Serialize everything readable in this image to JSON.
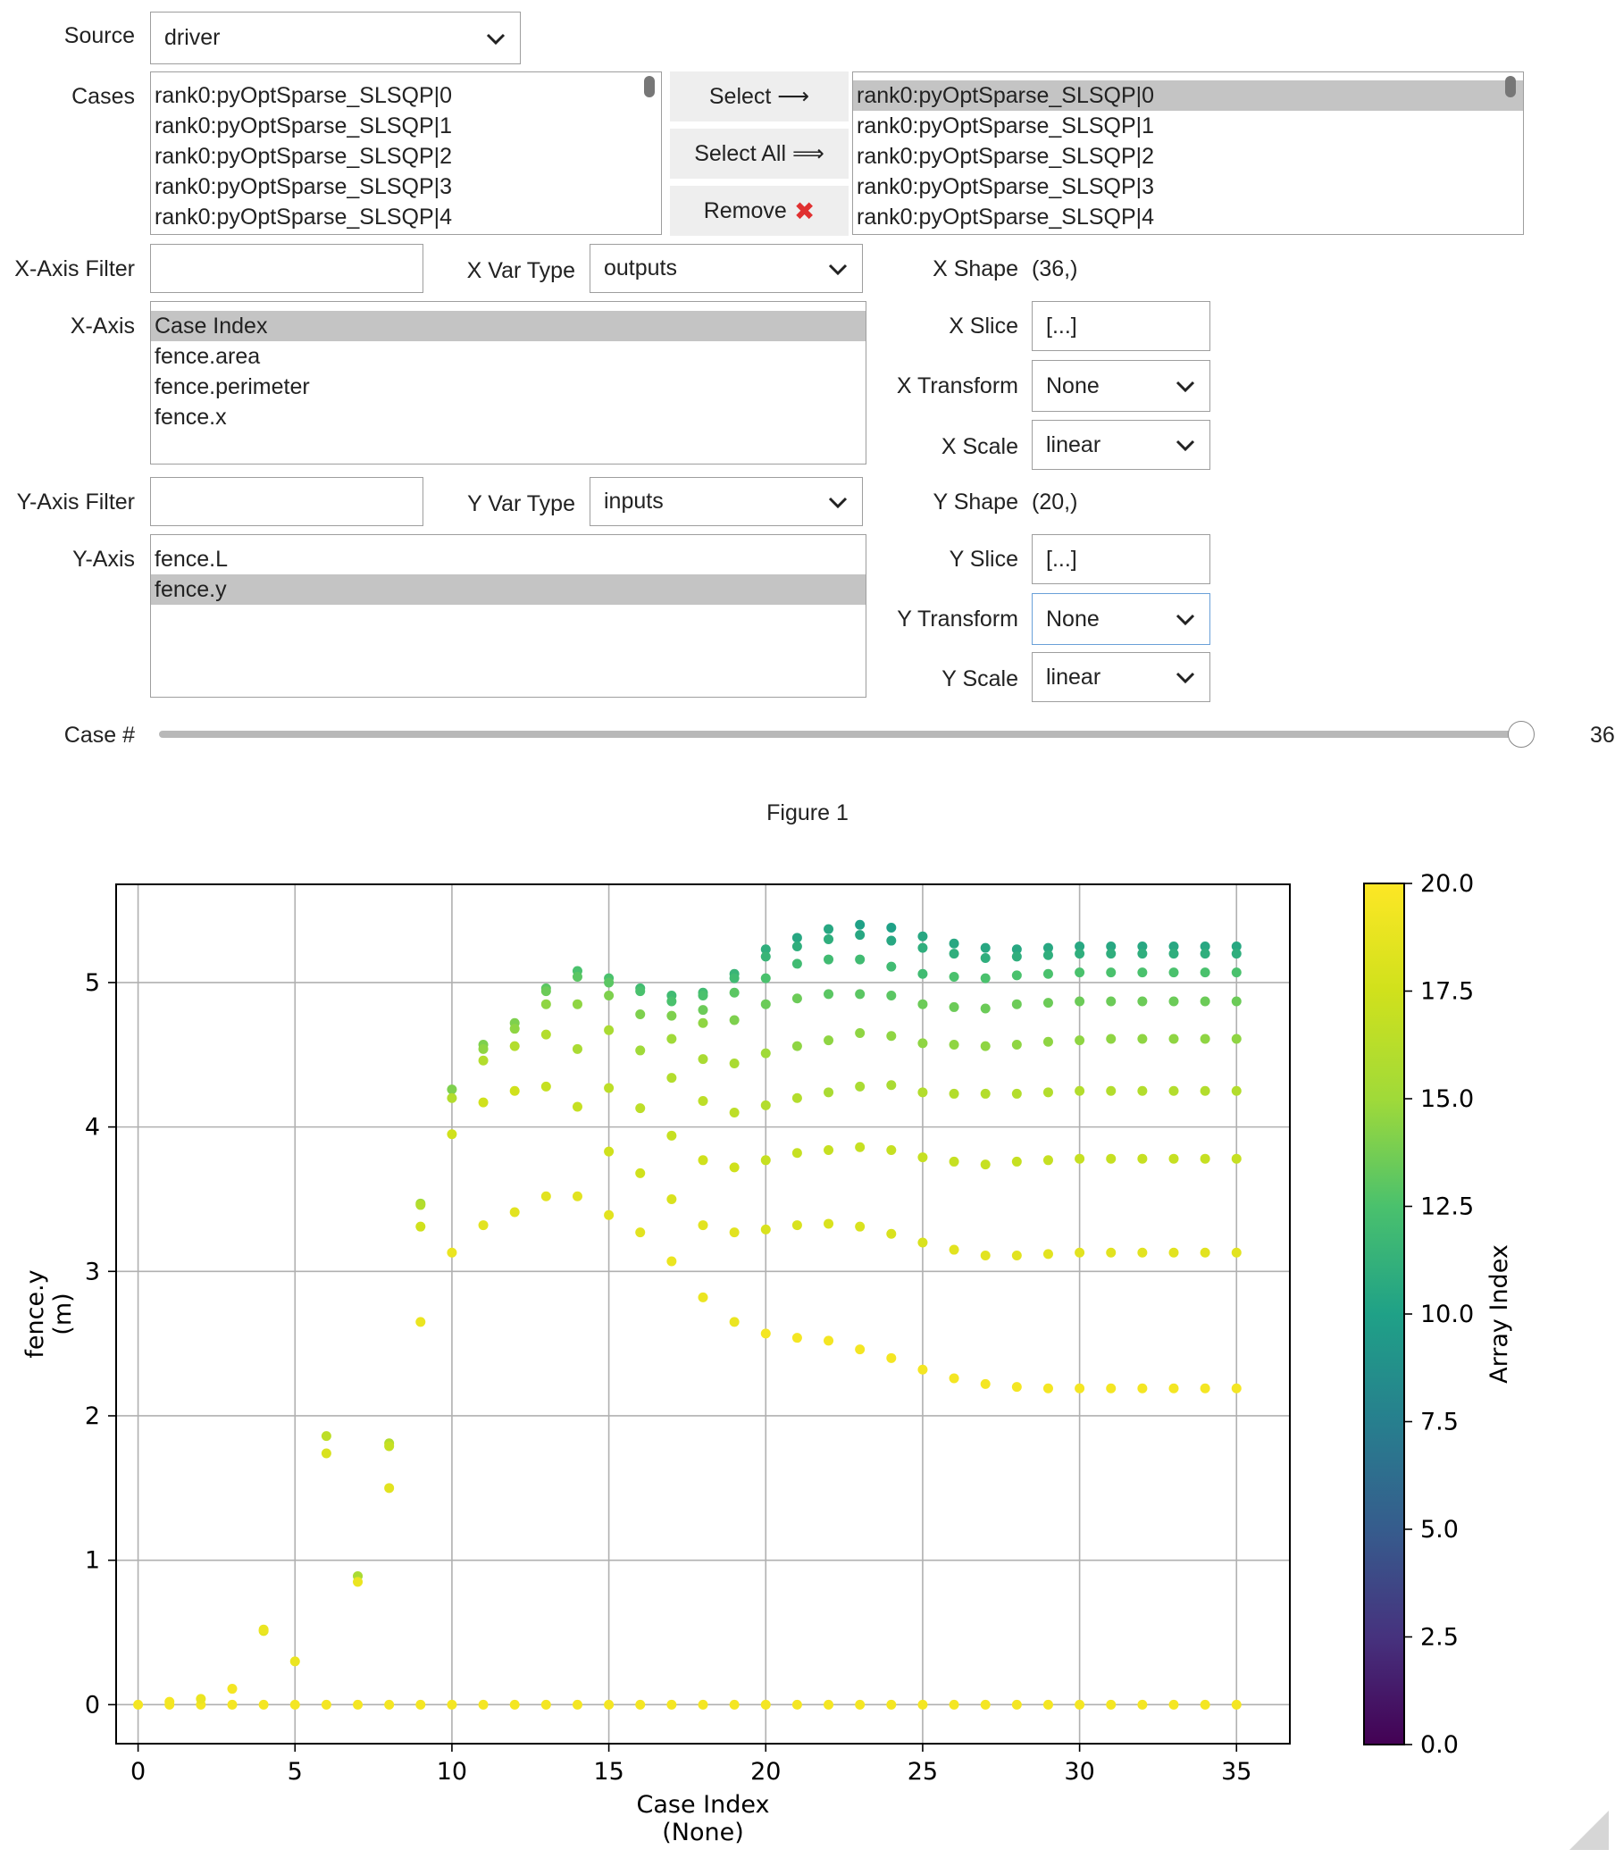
{
  "controls": {
    "source": {
      "label": "Source",
      "value": "driver"
    },
    "cases": {
      "label": "Cases",
      "available": [
        "rank0:pyOptSparse_SLSQP|0",
        "rank0:pyOptSparse_SLSQP|1",
        "rank0:pyOptSparse_SLSQP|2",
        "rank0:pyOptSparse_SLSQP|3",
        "rank0:pyOptSparse_SLSQP|4"
      ],
      "selected": [
        "rank0:pyOptSparse_SLSQP|0",
        "rank0:pyOptSparse_SLSQP|1",
        "rank0:pyOptSparse_SLSQP|2",
        "rank0:pyOptSparse_SLSQP|3",
        "rank0:pyOptSparse_SLSQP|4"
      ],
      "selected_highlight": "rank0:pyOptSparse_SLSQP|0"
    },
    "buttons": {
      "select": "Select ⟶",
      "select_all": "Select All ⟹",
      "remove": "Remove",
      "remove_icon": "✖"
    },
    "x_filter": {
      "label": "X-Axis Filter",
      "value": ""
    },
    "x_var_type": {
      "label": "X Var Type",
      "value": "outputs"
    },
    "x_axis": {
      "label": "X-Axis",
      "options": [
        "Case Index",
        "fence.area",
        "fence.perimeter",
        "fence.x"
      ],
      "selected": "Case Index"
    },
    "x_shape": {
      "label": "X Shape",
      "value": "(36,)"
    },
    "x_slice": {
      "label": "X Slice",
      "value": "[...]"
    },
    "x_transform": {
      "label": "X Transform",
      "value": "None"
    },
    "x_scale": {
      "label": "X Scale",
      "value": "linear"
    },
    "y_filter": {
      "label": "Y-Axis Filter",
      "value": ""
    },
    "y_var_type": {
      "label": "Y Var Type",
      "value": "inputs"
    },
    "y_axis": {
      "label": "Y-Axis",
      "options": [
        "fence.L",
        "fence.y"
      ],
      "selected": "fence.y"
    },
    "y_shape": {
      "label": "Y Shape",
      "value": "(20,)"
    },
    "y_slice": {
      "label": "Y Slice",
      "value": "[...]"
    },
    "y_transform": {
      "label": "Y Transform",
      "value": "None"
    },
    "y_scale": {
      "label": "Y Scale",
      "value": "linear"
    },
    "case_slider": {
      "label": "Case #",
      "value": 36,
      "min": 0,
      "max": 36
    }
  },
  "figure": {
    "title": "Figure 1"
  },
  "chart_data": {
    "type": "scatter",
    "xlabel": "Case Index\n(None)",
    "ylabel": "fence.y\n(m)",
    "xlim": [
      -0.7,
      36.7
    ],
    "ylim": [
      -0.27,
      5.68
    ],
    "xticks": [
      0,
      5,
      10,
      15,
      20,
      25,
      30,
      35
    ],
    "yticks": [
      0,
      1,
      2,
      3,
      4,
      5
    ],
    "grid": true,
    "colorbar": {
      "label": "Array Index",
      "range": [
        0.0,
        20.0
      ],
      "ticks": [
        "0.0",
        "2.5",
        "5.0",
        "7.5",
        "10.0",
        "12.5",
        "15.0",
        "17.5",
        "20.0"
      ],
      "colormap": "viridis"
    },
    "points": [
      [
        1,
        0.02,
        19.5
      ],
      [
        2,
        0.04,
        19.0
      ],
      [
        3,
        0.11,
        19.5
      ],
      [
        4,
        0.51,
        18.5
      ],
      [
        4,
        0.52,
        19.0
      ],
      [
        5,
        0.3,
        19.0
      ],
      [
        6,
        1.86,
        16.5
      ],
      [
        6,
        1.74,
        18.0
      ],
      [
        7,
        0.89,
        15.5
      ],
      [
        7,
        0.85,
        19.0
      ],
      [
        8,
        1.81,
        16.0
      ],
      [
        8,
        1.79,
        17.0
      ],
      [
        8,
        1.5,
        18.5
      ],
      [
        9,
        3.47,
        15.0
      ],
      [
        9,
        3.46,
        16.0
      ],
      [
        9,
        3.31,
        17.5
      ],
      [
        9,
        2.65,
        19.0
      ],
      [
        10,
        4.26,
        14.0
      ],
      [
        10,
        4.2,
        16.0
      ],
      [
        10,
        3.95,
        17.5
      ],
      [
        10,
        3.13,
        19.0
      ],
      [
        11,
        4.57,
        14.0
      ],
      [
        11,
        4.54,
        14.5
      ],
      [
        11,
        4.46,
        16.0
      ],
      [
        11,
        4.17,
        17.5
      ],
      [
        11,
        3.32,
        18.5
      ],
      [
        12,
        4.72,
        14.0
      ],
      [
        12,
        4.68,
        14.5
      ],
      [
        12,
        4.56,
        16.0
      ],
      [
        12,
        4.25,
        17.5
      ],
      [
        12,
        3.41,
        18.5
      ],
      [
        13,
        4.96,
        13.0
      ],
      [
        13,
        4.94,
        13.5
      ],
      [
        13,
        4.85,
        14.5
      ],
      [
        13,
        4.64,
        16.0
      ],
      [
        13,
        4.28,
        17.0
      ],
      [
        13,
        3.52,
        18.5
      ],
      [
        14,
        5.08,
        12.5
      ],
      [
        14,
        5.04,
        13.0
      ],
      [
        14,
        4.85,
        14.5
      ],
      [
        14,
        4.54,
        15.5
      ],
      [
        14,
        4.14,
        17.0
      ],
      [
        14,
        3.52,
        18.5
      ],
      [
        15,
        5.03,
        12.5
      ],
      [
        15,
        5.0,
        13.0
      ],
      [
        15,
        4.91,
        14.0
      ],
      [
        15,
        4.67,
        15.5
      ],
      [
        15,
        4.27,
        16.5
      ],
      [
        15,
        3.83,
        17.5
      ],
      [
        15,
        3.39,
        18.5
      ],
      [
        16,
        4.96,
        12.0
      ],
      [
        16,
        4.94,
        12.5
      ],
      [
        16,
        4.78,
        14.0
      ],
      [
        16,
        4.53,
        15.0
      ],
      [
        16,
        4.13,
        16.5
      ],
      [
        16,
        3.68,
        17.5
      ],
      [
        16,
        3.27,
        18.5
      ],
      [
        17,
        4.91,
        12.0
      ],
      [
        17,
        4.87,
        12.5
      ],
      [
        17,
        4.77,
        14.0
      ],
      [
        17,
        4.61,
        15.0
      ],
      [
        17,
        4.34,
        16.0
      ],
      [
        17,
        3.94,
        17.0
      ],
      [
        17,
        3.5,
        18.0
      ],
      [
        17,
        3.07,
        19.0
      ],
      [
        18,
        4.93,
        12.0
      ],
      [
        18,
        4.91,
        12.5
      ],
      [
        18,
        4.81,
        13.5
      ],
      [
        18,
        4.72,
        14.5
      ],
      [
        18,
        4.47,
        15.5
      ],
      [
        18,
        4.18,
        16.5
      ],
      [
        18,
        3.77,
        17.5
      ],
      [
        18,
        3.32,
        18.5
      ],
      [
        18,
        2.82,
        19.0
      ],
      [
        19,
        5.06,
        11.5
      ],
      [
        19,
        5.03,
        12.0
      ],
      [
        19,
        4.93,
        13.0
      ],
      [
        19,
        4.74,
        14.0
      ],
      [
        19,
        4.44,
        15.5
      ],
      [
        19,
        4.1,
        16.5
      ],
      [
        19,
        3.72,
        17.5
      ],
      [
        19,
        3.27,
        18.5
      ],
      [
        19,
        2.65,
        19.0
      ],
      [
        20,
        5.23,
        11.0
      ],
      [
        20,
        5.18,
        11.5
      ],
      [
        20,
        5.03,
        12.5
      ],
      [
        20,
        4.85,
        13.5
      ],
      [
        20,
        4.51,
        15.0
      ],
      [
        20,
        4.15,
        16.0
      ],
      [
        20,
        3.77,
        17.0
      ],
      [
        20,
        3.29,
        18.0
      ],
      [
        20,
        2.57,
        19.5
      ],
      [
        21,
        5.31,
        10.5
      ],
      [
        21,
        5.25,
        11.0
      ],
      [
        21,
        5.13,
        12.0
      ],
      [
        21,
        4.89,
        13.5
      ],
      [
        21,
        4.56,
        14.5
      ],
      [
        21,
        4.2,
        16.0
      ],
      [
        21,
        3.82,
        17.0
      ],
      [
        21,
        3.32,
        18.0
      ],
      [
        21,
        2.54,
        19.5
      ],
      [
        22,
        5.37,
        10.5
      ],
      [
        22,
        5.3,
        11.0
      ],
      [
        22,
        5.16,
        12.0
      ],
      [
        22,
        4.92,
        13.0
      ],
      [
        22,
        4.6,
        14.5
      ],
      [
        22,
        4.24,
        15.5
      ],
      [
        22,
        3.84,
        17.0
      ],
      [
        22,
        3.33,
        18.0
      ],
      [
        22,
        2.52,
        19.5
      ],
      [
        23,
        5.4,
        10.0
      ],
      [
        23,
        5.33,
        10.5
      ],
      [
        23,
        5.16,
        12.0
      ],
      [
        23,
        4.92,
        13.0
      ],
      [
        23,
        4.65,
        14.5
      ],
      [
        23,
        4.28,
        15.5
      ],
      [
        23,
        3.86,
        17.0
      ],
      [
        23,
        3.31,
        18.0
      ],
      [
        23,
        2.46,
        19.5
      ],
      [
        24,
        5.38,
        10.0
      ],
      [
        24,
        5.29,
        10.5
      ],
      [
        24,
        5.11,
        12.0
      ],
      [
        24,
        4.91,
        13.0
      ],
      [
        24,
        4.63,
        14.5
      ],
      [
        24,
        4.29,
        15.5
      ],
      [
        24,
        3.84,
        17.0
      ],
      [
        24,
        3.26,
        18.0
      ],
      [
        24,
        2.4,
        19.5
      ],
      [
        25,
        5.32,
        10.5
      ],
      [
        25,
        5.24,
        11.0
      ],
      [
        25,
        5.06,
        12.0
      ],
      [
        25,
        4.85,
        13.5
      ],
      [
        25,
        4.58,
        14.5
      ],
      [
        25,
        4.24,
        16.0
      ],
      [
        25,
        3.79,
        17.0
      ],
      [
        25,
        3.2,
        18.0
      ],
      [
        25,
        2.32,
        19.5
      ],
      [
        26,
        5.27,
        10.5
      ],
      [
        26,
        5.2,
        11.0
      ],
      [
        26,
        5.04,
        12.5
      ],
      [
        26,
        4.83,
        13.5
      ],
      [
        26,
        4.57,
        14.5
      ],
      [
        26,
        4.23,
        16.0
      ],
      [
        26,
        3.76,
        17.0
      ],
      [
        26,
        3.15,
        18.5
      ],
      [
        26,
        2.26,
        19.5
      ],
      [
        27,
        5.24,
        10.5
      ],
      [
        27,
        5.17,
        11.0
      ],
      [
        27,
        5.03,
        12.5
      ],
      [
        27,
        4.82,
        13.5
      ],
      [
        27,
        4.56,
        14.5
      ],
      [
        27,
        4.23,
        16.0
      ],
      [
        27,
        3.74,
        17.0
      ],
      [
        27,
        3.11,
        18.5
      ],
      [
        27,
        2.22,
        19.5
      ],
      [
        28,
        5.23,
        10.5
      ],
      [
        28,
        5.18,
        11.0
      ],
      [
        28,
        5.05,
        12.5
      ],
      [
        28,
        4.85,
        13.5
      ],
      [
        28,
        4.57,
        14.5
      ],
      [
        28,
        4.23,
        16.0
      ],
      [
        28,
        3.76,
        17.0
      ],
      [
        28,
        3.11,
        18.5
      ],
      [
        28,
        2.2,
        19.5
      ],
      [
        29,
        5.24,
        10.5
      ],
      [
        29,
        5.19,
        11.0
      ],
      [
        29,
        5.06,
        12.5
      ],
      [
        29,
        4.86,
        13.5
      ],
      [
        29,
        4.59,
        14.5
      ],
      [
        29,
        4.24,
        16.0
      ],
      [
        29,
        3.77,
        17.0
      ],
      [
        29,
        3.12,
        18.5
      ],
      [
        29,
        2.19,
        19.5
      ],
      [
        30,
        5.25,
        10.5
      ],
      [
        30,
        5.2,
        11.0
      ],
      [
        30,
        5.07,
        12.5
      ],
      [
        30,
        4.87,
        13.5
      ],
      [
        30,
        4.6,
        14.5
      ],
      [
        30,
        4.25,
        16.0
      ],
      [
        30,
        3.78,
        17.0
      ],
      [
        30,
        3.13,
        18.5
      ],
      [
        30,
        2.19,
        19.5
      ],
      [
        31,
        5.25,
        10.5
      ],
      [
        31,
        5.2,
        11.0
      ],
      [
        31,
        5.07,
        12.5
      ],
      [
        31,
        4.87,
        13.5
      ],
      [
        31,
        4.61,
        14.5
      ],
      [
        31,
        4.25,
        16.0
      ],
      [
        31,
        3.78,
        17.0
      ],
      [
        31,
        3.13,
        18.5
      ],
      [
        31,
        2.19,
        19.5
      ],
      [
        32,
        5.25,
        10.5
      ],
      [
        32,
        5.2,
        11.0
      ],
      [
        32,
        5.07,
        12.5
      ],
      [
        32,
        4.87,
        13.5
      ],
      [
        32,
        4.61,
        14.5
      ],
      [
        32,
        4.25,
        16.0
      ],
      [
        32,
        3.78,
        17.0
      ],
      [
        32,
        3.13,
        18.5
      ],
      [
        32,
        2.19,
        19.5
      ],
      [
        33,
        5.25,
        10.5
      ],
      [
        33,
        5.2,
        11.0
      ],
      [
        33,
        5.07,
        12.5
      ],
      [
        33,
        4.87,
        13.5
      ],
      [
        33,
        4.61,
        14.5
      ],
      [
        33,
        4.25,
        16.0
      ],
      [
        33,
        3.78,
        17.0
      ],
      [
        33,
        3.13,
        18.5
      ],
      [
        33,
        2.19,
        19.5
      ],
      [
        34,
        5.25,
        10.5
      ],
      [
        34,
        5.2,
        11.0
      ],
      [
        34,
        5.07,
        12.5
      ],
      [
        34,
        4.87,
        13.5
      ],
      [
        34,
        4.61,
        14.5
      ],
      [
        34,
        4.25,
        16.0
      ],
      [
        34,
        3.78,
        17.0
      ],
      [
        34,
        3.13,
        18.5
      ],
      [
        34,
        2.19,
        19.5
      ],
      [
        35,
        5.25,
        10.5
      ],
      [
        35,
        5.2,
        11.0
      ],
      [
        35,
        5.07,
        12.5
      ],
      [
        35,
        4.87,
        13.5
      ],
      [
        35,
        4.61,
        14.5
      ],
      [
        35,
        4.25,
        16.0
      ],
      [
        35,
        3.78,
        17.0
      ],
      [
        35,
        3.13,
        18.5
      ],
      [
        35,
        2.19,
        19.5
      ]
    ],
    "baseline": {
      "y": 0.0,
      "x_from": 0,
      "x_to": 35,
      "color_value": 19.5
    }
  }
}
